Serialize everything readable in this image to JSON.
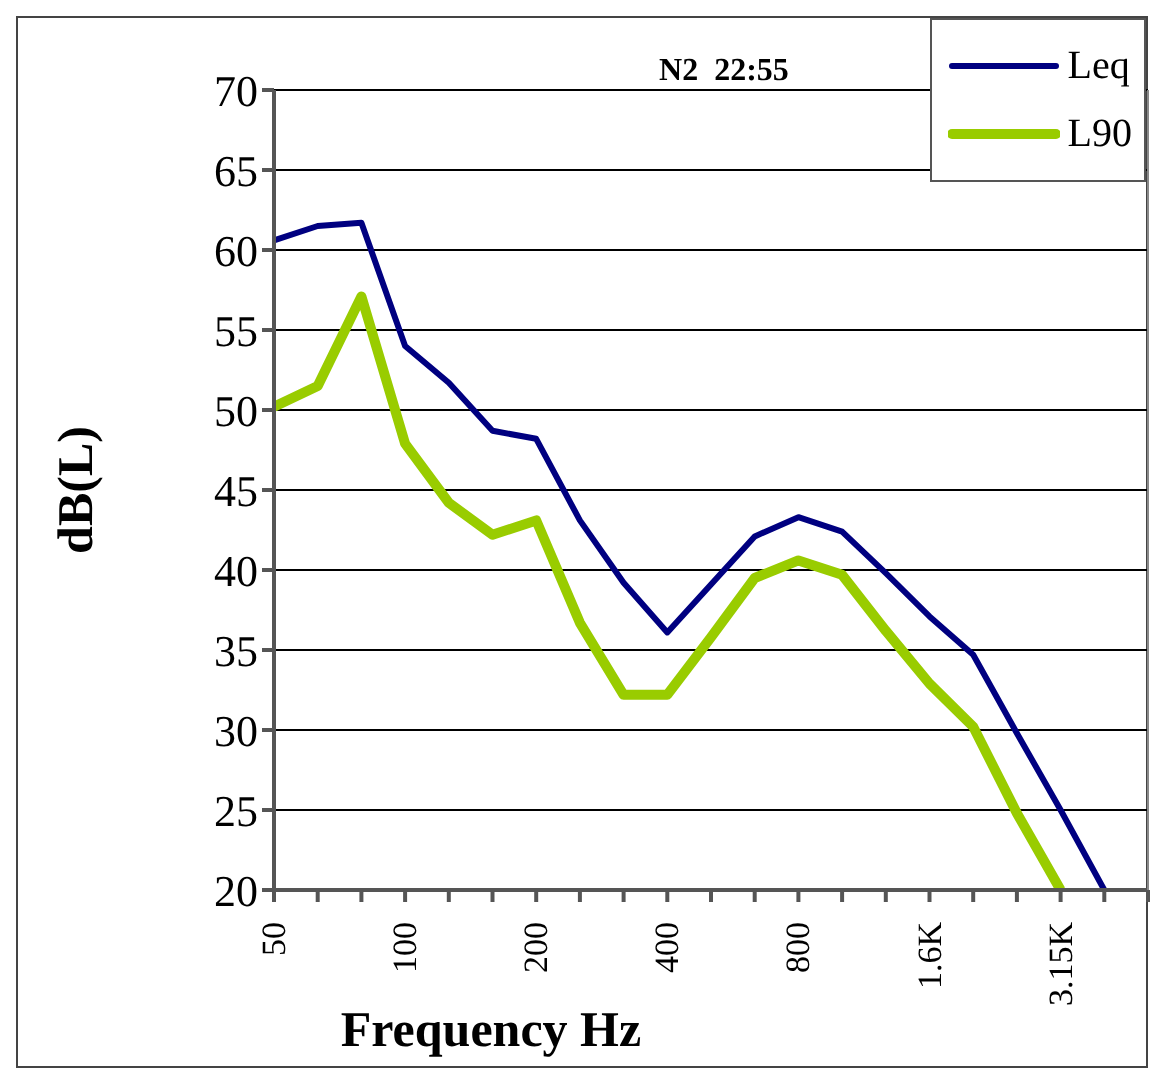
{
  "chart_data": {
    "type": "line",
    "title": "N2  22:55",
    "xlabel": "Frequency Hz",
    "ylabel": "dB(L)",
    "categories": [
      "50",
      null,
      null,
      "100",
      null,
      null,
      "200",
      null,
      null,
      "400",
      null,
      null,
      "800",
      null,
      null,
      "1.6K",
      null,
      null,
      "3.15K",
      null,
      null
    ],
    "series": [
      {
        "name": "Leq",
        "color": "#000080",
        "values": [
          60.6,
          61.5,
          61.7,
          54,
          51.7,
          48.7,
          48.2,
          43.1,
          39.2,
          36.1,
          39.1,
          42.1,
          43.3,
          42.4,
          39.8,
          37.1,
          34.7,
          29.8,
          25,
          20,
          null
        ]
      },
      {
        "name": "L90",
        "color": "#99cc00",
        "values": [
          50.2,
          51.5,
          57.1,
          47.9,
          44.2,
          42.2,
          43.1,
          36.7,
          32.2,
          32.2,
          35.8,
          39.5,
          40.6,
          39.7,
          36.2,
          32.9,
          30.2,
          24.8,
          20,
          null,
          null
        ]
      }
    ],
    "ylim": [
      20,
      70
    ],
    "yticks": [
      20,
      25,
      30,
      35,
      40,
      45,
      50,
      55,
      60,
      65,
      70
    ],
    "grid": "y",
    "legend": "top right",
    "marker": "none",
    "line_style": "solid"
  }
}
